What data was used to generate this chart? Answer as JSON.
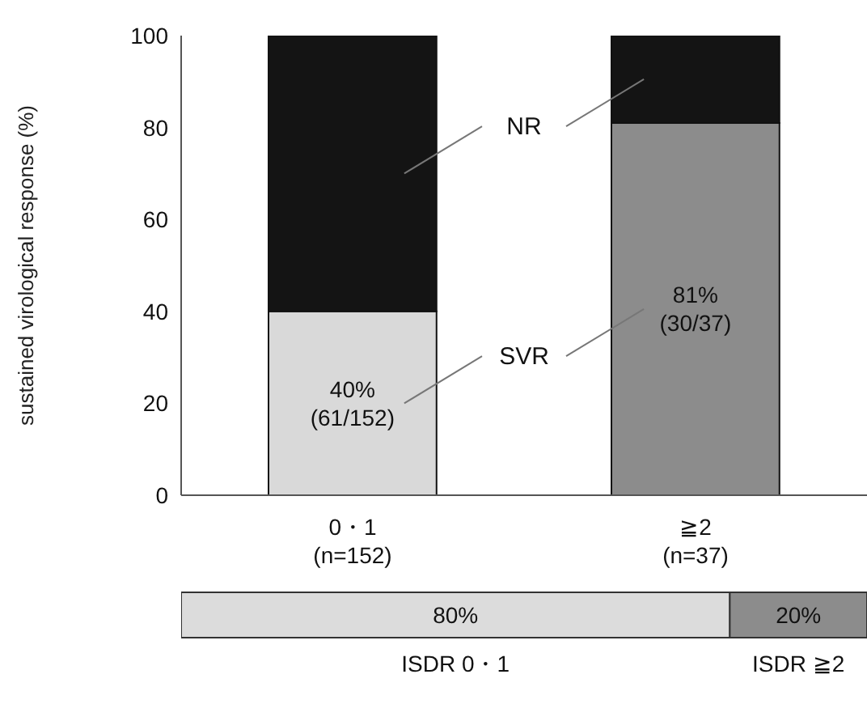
{
  "chart_data": [
    {
      "type": "bar",
      "ylabel": "sustained virological response (%)",
      "categories": [
        "0・1\n(n=152)",
        "≧2\n(n=37)"
      ],
      "stacked": true,
      "ylim": [
        0,
        100
      ],
      "yticks": [
        0,
        20,
        40,
        60,
        80,
        100
      ],
      "series": [
        {
          "name": "SVR",
          "colors": [
            "#d9d9d9",
            "#8c8c8c"
          ],
          "values": [
            40,
            81
          ],
          "value_labels": [
            "40%\n(61/152)",
            "81%\n(30/37)"
          ]
        },
        {
          "name": "NR",
          "color": "#141414",
          "values": [
            60,
            19
          ]
        }
      ]
    },
    {
      "type": "bar",
      "orientation": "horizontal",
      "stacked": true,
      "categories": [
        null
      ],
      "tick_labels": false,
      "series": [
        {
          "name": "ISDR 0・1",
          "color": "#dcdcdc",
          "values": [
            80
          ],
          "value_labels": [
            "80%"
          ]
        },
        {
          "name": "ISDR ≧2",
          "color": "#8c8c8c",
          "values": [
            20
          ],
          "value_labels": [
            "20%"
          ]
        }
      ]
    }
  ]
}
